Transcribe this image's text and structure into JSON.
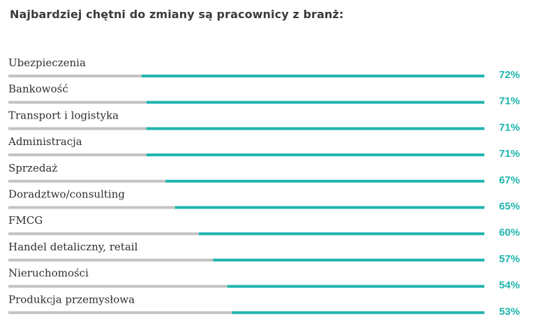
{
  "title": "Najbardziej chętni do zmiany są pracownicy z branż:",
  "colors": {
    "accent": "#1fb5ae",
    "track": "#c3c3c3",
    "text": "#2f2f2f"
  },
  "chart_data": {
    "type": "bar",
    "orientation": "horizontal",
    "title": "Najbardziej chętni do zmiany są pracownicy z branż:",
    "categories": [
      "Ubezpieczenia",
      "Bankowość",
      "Transport i logistyka",
      "Administracja",
      "Sprzedaż",
      "Doradztwo/consulting",
      "FMCG",
      "Handel detaliczny,  retail",
      "Nieruchomości",
      "Produkcja przemysłowa"
    ],
    "values": [
      72,
      71,
      71,
      71,
      67,
      65,
      60,
      57,
      54,
      53
    ],
    "value_labels": [
      "72%",
      "71%",
      "71%",
      "71%",
      "67%",
      "65%",
      "60%",
      "57%",
      "54%",
      "53%"
    ],
    "xlim": [
      0,
      100
    ],
    "grid": false,
    "legend": "none"
  }
}
